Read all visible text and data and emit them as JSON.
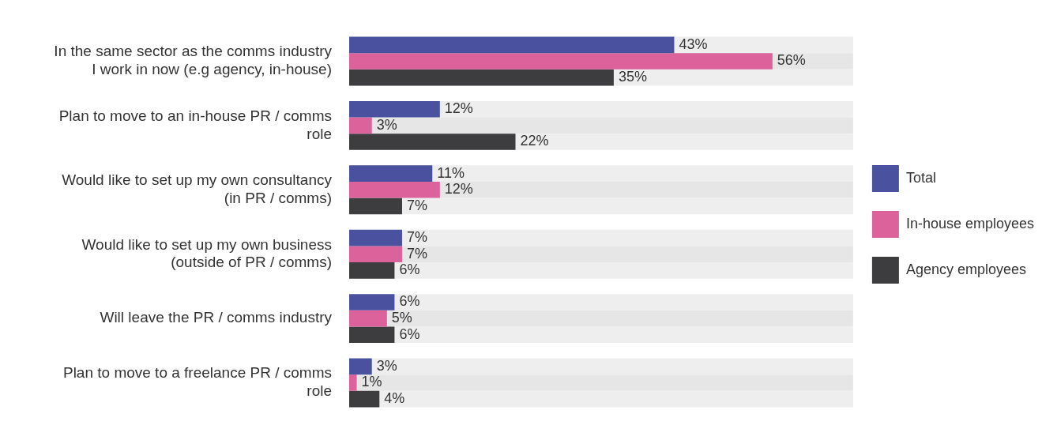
{
  "chart_data": {
    "type": "bar",
    "orientation": "horizontal",
    "categories": [
      "In the same sector as the comms industry I work in now (e.g agency, in-house)",
      "Plan to move to an in-house PR / comms role",
      "Would like to set up my own consultancy (in PR / comms)",
      "Would like to set up my own business (outside of PR / comms)",
      "Will leave the PR / comms industry",
      "Plan to move to a freelance PR / comms role"
    ],
    "series": [
      {
        "name": "Total",
        "color": "#4a529f",
        "values": [
          43,
          12,
          11,
          7,
          6,
          3
        ],
        "value_labels": [
          "43%",
          "12%",
          "11%",
          "7%",
          "6%",
          "3%"
        ]
      },
      {
        "name": "In-house employees",
        "color": "#dc629b",
        "values": [
          56,
          3,
          12,
          7,
          5,
          1
        ],
        "value_labels": [
          "56%",
          "3%",
          "12%",
          "7%",
          "5%",
          "1%"
        ]
      },
      {
        "name": "Agency employees",
        "color": "#3d3d3f",
        "values": [
          35,
          22,
          7,
          6,
          6,
          4
        ],
        "value_labels": [
          "35%",
          "22%",
          "7%",
          "6%",
          "6%",
          "4%"
        ]
      }
    ],
    "legend": "right"
  }
}
